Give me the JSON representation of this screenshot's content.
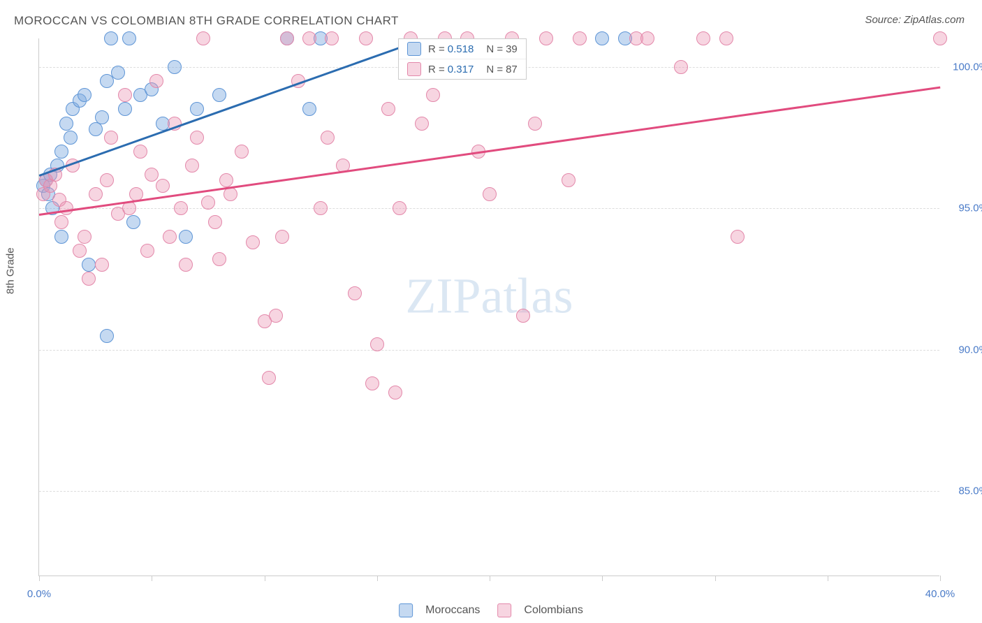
{
  "title": "MOROCCAN VS COLOMBIAN 8TH GRADE CORRELATION CHART",
  "source": "Source: ZipAtlas.com",
  "watermark": "ZIPatlas",
  "y_axis_label": "8th Grade",
  "chart": {
    "type": "scatter",
    "xlim": [
      0,
      40
    ],
    "ylim": [
      82,
      101
    ],
    "x_ticks": [
      0,
      5,
      10,
      15,
      20,
      25,
      30,
      35,
      40
    ],
    "x_tick_labels": {
      "0": "0.0%",
      "40": "40.0%"
    },
    "y_gridlines": [
      85,
      90,
      95,
      100
    ],
    "y_tick_labels": {
      "85": "85.0%",
      "90": "90.0%",
      "95": "95.0%",
      "100": "100.0%"
    },
    "background_color": "#ffffff",
    "grid_color": "#dddddd",
    "axis_color": "#cccccc",
    "tick_label_color": "#4a7bc8",
    "point_radius": 10,
    "series": [
      {
        "name": "Moroccans",
        "fill": "rgba(126,170,224,0.45)",
        "stroke": "#5e95d6",
        "color_hex": "#7eaae0",
        "trend": {
          "x1": 0,
          "y1": 96.2,
          "x2": 17,
          "y2": 101,
          "color": "#2b6cb0",
          "width": 2.5
        },
        "R": "0.518",
        "N": "39",
        "points": [
          [
            0.2,
            95.8
          ],
          [
            0.3,
            96.0
          ],
          [
            0.4,
            95.5
          ],
          [
            0.5,
            96.2
          ],
          [
            0.6,
            95.0
          ],
          [
            0.8,
            96.5
          ],
          [
            1.0,
            97.0
          ],
          [
            1.2,
            98.0
          ],
          [
            1.4,
            97.5
          ],
          [
            1.5,
            98.5
          ],
          [
            1.8,
            98.8
          ],
          [
            2.0,
            99.0
          ],
          [
            2.2,
            93.0
          ],
          [
            2.5,
            97.8
          ],
          [
            2.8,
            98.2
          ],
          [
            3.0,
            99.5
          ],
          [
            3.2,
            101.0
          ],
          [
            3.5,
            99.8
          ],
          [
            3.8,
            98.5
          ],
          [
            4.0,
            101.0
          ],
          [
            4.2,
            94.5
          ],
          [
            4.5,
            99.0
          ],
          [
            5.0,
            99.2
          ],
          [
            5.5,
            98.0
          ],
          [
            6.0,
            100.0
          ],
          [
            6.5,
            94.0
          ],
          [
            7.0,
            98.5
          ],
          [
            3.0,
            90.5
          ],
          [
            1.0,
            94.0
          ],
          [
            8.0,
            99.0
          ],
          [
            11.0,
            101.0
          ],
          [
            12.0,
            98.5
          ],
          [
            12.5,
            101.0
          ],
          [
            25.0,
            101.0
          ],
          [
            26.0,
            101.0
          ]
        ]
      },
      {
        "name": "Colombians",
        "fill": "rgba(236,150,180,0.40)",
        "stroke": "#e388aa",
        "color_hex": "#ec96b4",
        "trend": {
          "x1": 0,
          "y1": 94.8,
          "x2": 40,
          "y2": 99.3,
          "color": "#e14b7e",
          "width": 2.5
        },
        "R": "0.317",
        "N": "87",
        "points": [
          [
            0.2,
            95.5
          ],
          [
            0.3,
            96.0
          ],
          [
            0.5,
            95.8
          ],
          [
            0.7,
            96.2
          ],
          [
            0.9,
            95.3
          ],
          [
            1.0,
            94.5
          ],
          [
            1.2,
            95.0
          ],
          [
            1.5,
            96.5
          ],
          [
            1.8,
            93.5
          ],
          [
            2.0,
            94.0
          ],
          [
            2.2,
            92.5
          ],
          [
            2.5,
            95.5
          ],
          [
            2.8,
            93.0
          ],
          [
            3.0,
            96.0
          ],
          [
            3.2,
            97.5
          ],
          [
            3.5,
            94.8
          ],
          [
            3.8,
            99.0
          ],
          [
            4.0,
            95.0
          ],
          [
            4.3,
            95.5
          ],
          [
            4.5,
            97.0
          ],
          [
            4.8,
            93.5
          ],
          [
            5.0,
            96.2
          ],
          [
            5.2,
            99.5
          ],
          [
            5.5,
            95.8
          ],
          [
            5.8,
            94.0
          ],
          [
            6.0,
            98.0
          ],
          [
            6.3,
            95.0
          ],
          [
            6.5,
            93.0
          ],
          [
            6.8,
            96.5
          ],
          [
            7.0,
            97.5
          ],
          [
            7.3,
            101.0
          ],
          [
            7.5,
            95.2
          ],
          [
            7.8,
            94.5
          ],
          [
            8.0,
            93.2
          ],
          [
            8.3,
            96.0
          ],
          [
            8.5,
            95.5
          ],
          [
            9.0,
            97.0
          ],
          [
            9.5,
            93.8
          ],
          [
            10.0,
            91.0
          ],
          [
            10.2,
            89.0
          ],
          [
            10.5,
            91.2
          ],
          [
            10.8,
            94.0
          ],
          [
            11.0,
            101.0
          ],
          [
            11.5,
            99.5
          ],
          [
            12.0,
            101.0
          ],
          [
            12.5,
            95.0
          ],
          [
            12.8,
            97.5
          ],
          [
            13.0,
            101.0
          ],
          [
            13.5,
            96.5
          ],
          [
            14.0,
            92.0
          ],
          [
            14.5,
            101.0
          ],
          [
            14.8,
            88.8
          ],
          [
            15.0,
            90.2
          ],
          [
            15.5,
            98.5
          ],
          [
            15.8,
            88.5
          ],
          [
            16.0,
            95.0
          ],
          [
            16.5,
            101.0
          ],
          [
            17.0,
            98.0
          ],
          [
            17.5,
            99.0
          ],
          [
            18.0,
            101.0
          ],
          [
            19.0,
            101.0
          ],
          [
            19.5,
            97.0
          ],
          [
            20.0,
            95.5
          ],
          [
            21.0,
            101.0
          ],
          [
            21.5,
            91.2
          ],
          [
            22.0,
            98.0
          ],
          [
            22.5,
            101.0
          ],
          [
            23.5,
            96.0
          ],
          [
            24.0,
            101.0
          ],
          [
            26.5,
            101.0
          ],
          [
            27.0,
            101.0
          ],
          [
            28.5,
            100.0
          ],
          [
            29.5,
            101.0
          ],
          [
            30.5,
            101.0
          ],
          [
            31.0,
            94.0
          ],
          [
            40.0,
            101.0
          ]
        ]
      }
    ]
  },
  "legend_top": {
    "r_label": "R =",
    "n_label": "N =",
    "r_value_color": "#2b6cb0",
    "text_color": "#555555"
  },
  "legend_bottom": {
    "items": [
      "Moroccans",
      "Colombians"
    ]
  }
}
